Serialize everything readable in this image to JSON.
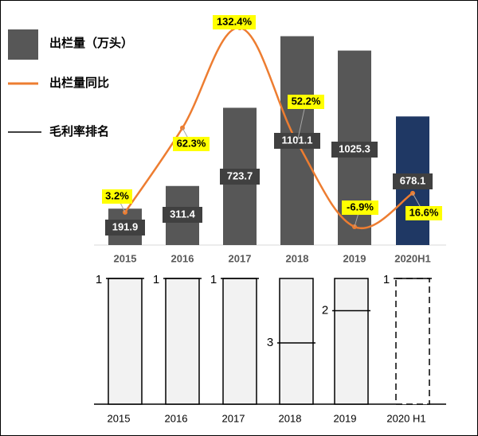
{
  "chart_data": [
    {
      "type": "bar",
      "categories": [
        "2015",
        "2016",
        "2017",
        "2018",
        "2019",
        "2020H1"
      ],
      "series": [
        {
          "name": "出栏量（万头）",
          "values": [
            191.9,
            311.4,
            723.7,
            1101.1,
            1025.3,
            678.1
          ],
          "data_labels": [
            "191.9",
            "311.4",
            "723.7",
            "1101.1",
            "1025.3",
            "678.1"
          ],
          "colors": [
            "#575757",
            "#575757",
            "#575757",
            "#575757",
            "#575757",
            "#1f3864"
          ]
        },
        {
          "name": "出栏量同比",
          "type": "line",
          "axis": "secondary",
          "values": [
            3.2,
            62.3,
            132.4,
            52.2,
            -6.9,
            16.6
          ],
          "data_labels": [
            "3.2%",
            "62.3%",
            "132.4%",
            "52.2%",
            "-6.9%",
            "16.6%"
          ],
          "color": "#ed7d31"
        }
      ],
      "ylim": [
        0,
        1250
      ],
      "legend_position": "top-left"
    },
    {
      "type": "table",
      "categories": [
        "2015",
        "2016",
        "2017",
        "2018",
        "2019",
        "2020 H1"
      ],
      "series": [
        {
          "name": "毛利率排名",
          "values": [
            1,
            1,
            1,
            3,
            2,
            1
          ],
          "labels": [
            "1",
            "1",
            "1",
            "3",
            "2",
            "1"
          ]
        }
      ],
      "ylim": [
        4,
        1
      ]
    }
  ],
  "legend": [
    {
      "key": "bar",
      "label": "出栏量（万头）",
      "color": "#575757"
    },
    {
      "key": "line",
      "label": "出栏量同比",
      "color": "#ed7d31"
    },
    {
      "key": "rank",
      "label": "毛利率排名",
      "color": "#000000"
    }
  ],
  "colors": {
    "bar": "#575757",
    "bar_highlight": "#1f3864",
    "line": "#ed7d31",
    "label_highlight": "#ffff00",
    "rank_column": "#f2f2f2"
  }
}
